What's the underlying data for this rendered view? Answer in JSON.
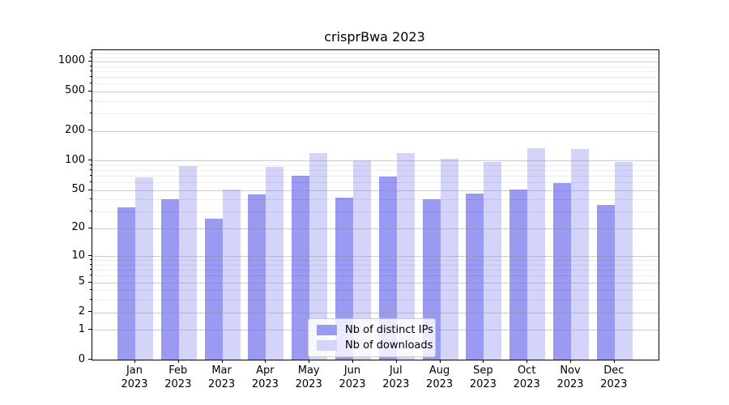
{
  "title": "crisprBwa 2023",
  "legend": {
    "items": [
      {
        "label": "Nb of distinct IPs",
        "color": "#9a9af1"
      },
      {
        "label": "Nb of downloads",
        "color": "#d4d4fa"
      }
    ]
  },
  "axes": {
    "y_tick_labels": [
      "0",
      "1",
      "2",
      "5",
      "10",
      "20",
      "50",
      "100",
      "200",
      "500",
      "1000"
    ],
    "x_tick_line2": "2023"
  },
  "chart_data": {
    "type": "bar",
    "title": "crisprBwa 2023",
    "categories": [
      "Jan",
      "Feb",
      "Mar",
      "Apr",
      "May",
      "Jun",
      "Jul",
      "Aug",
      "Sep",
      "Oct",
      "Nov",
      "Dec"
    ],
    "year": "2023",
    "series": [
      {
        "name": "Nb of distinct IPs",
        "color": "#9a9af1",
        "values": [
          33,
          40,
          25,
          45,
          70,
          42,
          69,
          40,
          46,
          51,
          59,
          35
        ]
      },
      {
        "name": "Nb of downloads",
        "color": "#d4d4fa",
        "values": [
          67,
          88,
          51,
          86,
          120,
          101,
          120,
          104,
          96,
          134,
          131,
          96
        ]
      }
    ],
    "xlabel": "",
    "ylabel": "",
    "yscale": "log10(value+1)",
    "yticks": [
      0,
      1,
      2,
      5,
      10,
      20,
      50,
      100,
      200,
      500,
      1000
    ],
    "ylim": [
      0,
      1300
    ],
    "grid": "major and minor horizontal gridlines",
    "legend_position": "lower center, inside axes"
  }
}
